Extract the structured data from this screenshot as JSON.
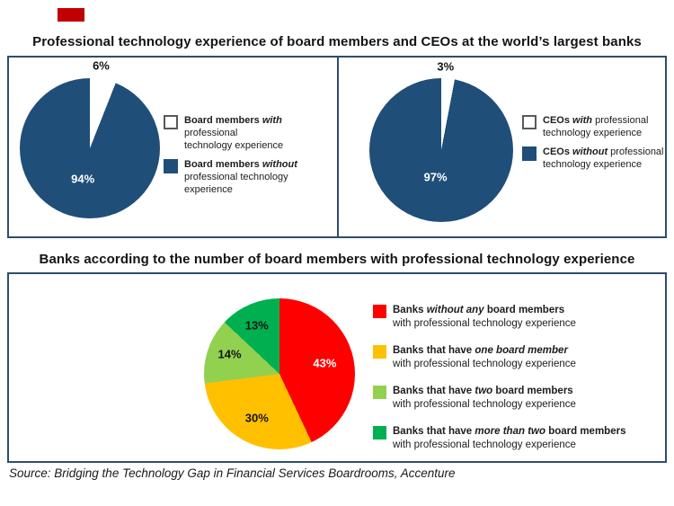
{
  "slide": {
    "accent_color": "#c00000",
    "title1": "Professional technology experience of board members and CEOs at the world’s largest banks",
    "title2": "Banks according to the number of board members with professional technology experience",
    "source": "Source: Bridging the Technology Gap in Financial Services Boardrooms, Accenture",
    "border_color": "#2e4d6b"
  },
  "colors": {
    "dark_blue": "#1f4e79",
    "white": "#ffffff",
    "red": "#ff0000",
    "yellow": "#ffc000",
    "light_green": "#92d050",
    "green": "#00b050"
  },
  "chart_data": [
    {
      "type": "pie",
      "name": "board-members-pie",
      "categories": [
        "Board members with professional technology experience",
        "Board members without professional technology experience"
      ],
      "values": [
        6,
        94
      ],
      "slice_colors": [
        "#ffffff",
        "#1f4e79"
      ],
      "start_angle_deg": 0,
      "direction": "clockwise",
      "labels": [
        {
          "text": "6%",
          "x": 58,
          "y": -9,
          "color": "#141414"
        },
        {
          "text": "94%",
          "x": 45,
          "y": 72,
          "color": "#ffffff"
        }
      ],
      "legend_position": "right",
      "legend": [
        {
          "swatch": "#ffffff",
          "swatch_border": "#595959",
          "lines": [
            [
              {
                "t": "Board members ",
                "b": true
              },
              {
                "t": "with",
                "b": true,
                "i": true
              },
              {
                "t": " professional"
              }
            ],
            [
              {
                "t": "technology experience"
              }
            ]
          ]
        },
        {
          "swatch": "#1f4e79",
          "swatch_border": "",
          "lines": [
            [
              {
                "t": "Board members ",
                "b": true
              },
              {
                "t": "without",
                "b": true,
                "i": true
              }
            ],
            [
              {
                "t": "professional technology experience"
              }
            ]
          ]
        }
      ]
    },
    {
      "type": "pie",
      "name": "ceo-pie",
      "categories": [
        "CEOs with professional technology experience",
        "CEOs without professional technology experience"
      ],
      "values": [
        3,
        97
      ],
      "slice_colors": [
        "#ffffff",
        "#1f4e79"
      ],
      "start_angle_deg": 0,
      "direction": "clockwise",
      "labels": [
        {
          "text": "3%",
          "x": 53,
          "y": -8,
          "color": "#141414"
        },
        {
          "text": "97%",
          "x": 46,
          "y": 69,
          "color": "#ffffff"
        }
      ],
      "legend_position": "right",
      "legend": [
        {
          "swatch": "#ffffff",
          "swatch_border": "#595959",
          "lines": [
            [
              {
                "t": "CEOs ",
                "b": true
              },
              {
                "t": "with",
                "b": true,
                "i": true
              },
              {
                "t": " professional"
              }
            ],
            [
              {
                "t": "technology experience"
              }
            ]
          ]
        },
        {
          "swatch": "#1f4e79",
          "swatch_border": "",
          "lines": [
            [
              {
                "t": "CEOs ",
                "b": true
              },
              {
                "t": "without",
                "b": true,
                "i": true
              },
              {
                "t": " professional"
              }
            ],
            [
              {
                "t": "technology experience"
              }
            ]
          ]
        }
      ]
    },
    {
      "type": "pie",
      "name": "banks-by-tech-board-members-pie",
      "categories": [
        "Banks without any board members with professional technology experience",
        "Banks that have one board member with professional technology experience",
        "Banks that have two board members with professional technology experience",
        "Banks that have more than two board members with professional technology experience"
      ],
      "values": [
        43,
        30,
        14,
        13
      ],
      "slice_colors": [
        "#ff0000",
        "#ffc000",
        "#92d050",
        "#00b050"
      ],
      "start_angle_deg": 0,
      "direction": "clockwise",
      "labels": [
        {
          "text": "43%",
          "x": 80,
          "y": 43,
          "color": "#ffffff"
        },
        {
          "text": "30%",
          "x": 35,
          "y": 79,
          "color": "#141414"
        },
        {
          "text": "14%",
          "x": 17,
          "y": 37,
          "color": "#141414"
        },
        {
          "text": "13%",
          "x": 35,
          "y": 18,
          "color": "#141414"
        }
      ],
      "legend_position": "right",
      "legend": [
        {
          "swatch": "#ff0000",
          "swatch_border": "",
          "lines": [
            [
              {
                "t": "Banks ",
                "b": true
              },
              {
                "t": "without any ",
                "b": true,
                "i": true
              },
              {
                "t": "board members",
                "b": true
              }
            ],
            [
              {
                "t": "with professional technology experience"
              }
            ]
          ]
        },
        {
          "swatch": "#ffc000",
          "swatch_border": "",
          "lines": [
            [
              {
                "t": "Banks that have ",
                "b": true
              },
              {
                "t": "one board member",
                "b": true,
                "i": true
              }
            ],
            [
              {
                "t": "with professional technology experience"
              }
            ]
          ]
        },
        {
          "swatch": "#92d050",
          "swatch_border": "",
          "lines": [
            [
              {
                "t": "Banks that have ",
                "b": true
              },
              {
                "t": "two ",
                "b": true,
                "i": true
              },
              {
                "t": "board members",
                "b": true
              }
            ],
            [
              {
                "t": "with professional technology experience"
              }
            ]
          ]
        },
        {
          "swatch": "#00b050",
          "swatch_border": "",
          "lines": [
            [
              {
                "t": "Banks that have ",
                "b": true
              },
              {
                "t": "more than two ",
                "b": true,
                "i": true
              },
              {
                "t": "board members",
                "b": true
              }
            ],
            [
              {
                "t": "with professional technology experience"
              }
            ]
          ]
        }
      ]
    }
  ]
}
